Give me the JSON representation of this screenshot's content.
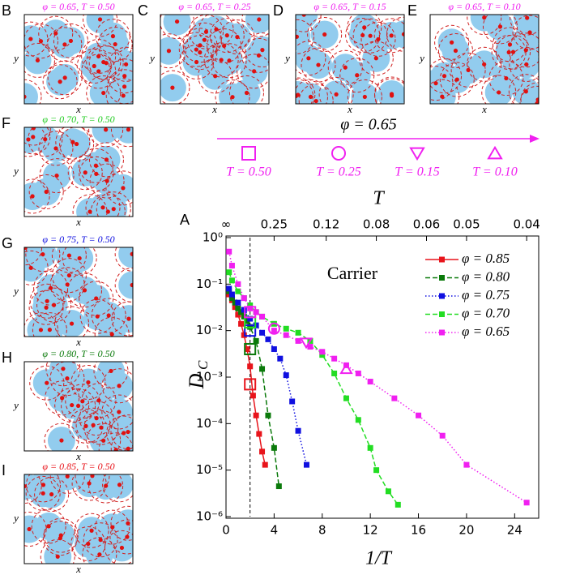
{
  "chart_data": {
    "type": "line",
    "panel_label": "A",
    "xlabel": "1/T",
    "ylabel": "D",
    "ylabel_subscript": "C",
    "top_label": "T",
    "annotation": "Carrier",
    "xlim": [
      0,
      26
    ],
    "xticks": [
      0,
      4,
      8,
      12,
      16,
      20,
      24
    ],
    "ylim": [
      1e-06,
      1
    ],
    "log_y": true,
    "yticks": [
      {
        "value": 1e-06,
        "label": "10⁻⁶"
      },
      {
        "value": 1e-05,
        "label": "10⁻⁵"
      },
      {
        "value": 0.0001,
        "label": "10⁻⁴"
      },
      {
        "value": 0.001,
        "label": "10⁻³"
      },
      {
        "value": 0.01,
        "label": "10⁻²"
      },
      {
        "value": 0.1,
        "label": "10⁻¹"
      },
      {
        "value": 1,
        "label": "10⁰"
      }
    ],
    "xticks_top": [
      {
        "value": 0,
        "label": "∞"
      },
      {
        "value": 4,
        "label": "0.25"
      },
      {
        "value": 8.33,
        "label": "0.12"
      },
      {
        "value": 12.5,
        "label": "0.08"
      },
      {
        "value": 16.67,
        "label": "0.06"
      },
      {
        "value": 20,
        "label": "0.05"
      },
      {
        "value": 25,
        "label": "0.04"
      }
    ],
    "vline": 2,
    "legend": "upper right",
    "series": [
      {
        "name": "φ = 0.85",
        "color": "#e8141b",
        "dash": "solid",
        "x": [
          0.25,
          0.5,
          0.75,
          1,
          1.25,
          1.5,
          1.75,
          2,
          2.25,
          2.5,
          2.75,
          3,
          3.25
        ],
        "values": [
          0.06,
          0.045,
          0.032,
          0.022,
          0.014,
          0.008,
          0.004,
          0.0017,
          0.0004,
          0.00015,
          6e-05,
          2.5e-05,
          1.3e-05
        ]
      },
      {
        "name": "φ = 0.80",
        "color": "#0b7a0b",
        "dash": "dashed",
        "x": [
          0.25,
          0.5,
          0.75,
          1,
          1.25,
          1.5,
          1.75,
          2,
          2.5,
          3,
          3.5,
          4,
          4.4
        ],
        "values": [
          0.07,
          0.05,
          0.04,
          0.03,
          0.025,
          0.02,
          0.016,
          0.012,
          0.006,
          0.0015,
          0.00015,
          3e-05,
          4.5e-06
        ]
      },
      {
        "name": "φ = 0.75",
        "color": "#1010e0",
        "dash": "dotted",
        "x": [
          0.25,
          0.5,
          1,
          1.5,
          2,
          2.5,
          3,
          3.5,
          4,
          4.5,
          5,
          5.5,
          6,
          6.7
        ],
        "values": [
          0.08,
          0.06,
          0.04,
          0.028,
          0.018,
          0.013,
          0.009,
          0.0065,
          0.004,
          0.0025,
          0.0011,
          0.0003,
          7e-05,
          1.3e-05
        ]
      },
      {
        "name": "φ = 0.70",
        "color": "#22dd22",
        "dash": "dashed",
        "x": [
          0.25,
          0.5,
          1,
          1.5,
          2,
          2.5,
          3,
          4,
          5,
          6,
          7,
          8,
          9,
          10,
          11,
          12,
          12.5,
          13.5,
          14.3
        ],
        "values": [
          0.18,
          0.12,
          0.07,
          0.05,
          0.035,
          0.025,
          0.02,
          0.014,
          0.011,
          0.009,
          0.006,
          0.003,
          0.0012,
          0.00035,
          0.00012,
          3e-05,
          1e-05,
          3.5e-06,
          1.8e-06
        ]
      },
      {
        "name": "φ = 0.65",
        "color": "#f020f0",
        "dash": "dotted",
        "x": [
          0.25,
          0.5,
          1,
          1.5,
          2,
          2.5,
          3,
          4,
          5,
          6,
          7,
          8,
          9,
          10,
          11,
          12,
          14,
          16,
          18,
          20,
          25
        ],
        "values": [
          0.5,
          0.25,
          0.1,
          0.05,
          0.03,
          0.025,
          0.02,
          0.01,
          0.008,
          0.006,
          0.0045,
          0.0035,
          0.0025,
          0.0018,
          0.0012,
          0.0008,
          0.00035,
          0.00015,
          5.5e-05,
          1.3e-05,
          2e-06
        ]
      }
    ],
    "highlights": [
      {
        "x": 2,
        "y": 0.0007,
        "marker": "square",
        "color": "#e8141b"
      },
      {
        "x": 2,
        "y": 0.004,
        "marker": "square",
        "color": "#0b7a0b"
      },
      {
        "x": 2,
        "y": 0.01,
        "marker": "square",
        "color": "#1010e0"
      },
      {
        "x": 2,
        "y": 0.015,
        "marker": "square",
        "color": "#22dd22"
      },
      {
        "x": 2,
        "y": 0.025,
        "marker": "square",
        "color": "#f020f0"
      },
      {
        "x": 4,
        "y": 0.011,
        "marker": "circle",
        "color": "#f020f0"
      },
      {
        "x": 6.67,
        "y": 0.0055,
        "marker": "triangle-down",
        "color": "#f020f0"
      },
      {
        "x": 10,
        "y": 0.0015,
        "marker": "triangle-up",
        "color": "#f020f0"
      }
    ]
  },
  "arrow_legend": {
    "label": "φ = 0.65",
    "color": "#f020f0",
    "items": [
      {
        "marker": "square",
        "label": "T = 0.50"
      },
      {
        "marker": "circle",
        "label": "T = 0.25"
      },
      {
        "marker": "triangle-down",
        "label": "T = 0.15"
      },
      {
        "marker": "triangle-up",
        "label": "T = 0.10"
      }
    ]
  },
  "panels": [
    {
      "letter": "B",
      "title": "φ = 0.65, T = 0.50",
      "color": "#f020f0",
      "xlabel": "x",
      "ylabel": "y"
    },
    {
      "letter": "C",
      "title": "φ = 0.65, T = 0.25",
      "color": "#f020f0",
      "xlabel": "x",
      "ylabel": "y"
    },
    {
      "letter": "D",
      "title": "φ = 0.65, T = 0.15",
      "color": "#f020f0",
      "xlabel": "x",
      "ylabel": "y"
    },
    {
      "letter": "E",
      "title": "φ = 0.65, T = 0.10",
      "color": "#f020f0",
      "xlabel": "x",
      "ylabel": "y"
    },
    {
      "letter": "F",
      "title": "φ = 0.70, T = 0.50",
      "color": "#22cc22",
      "xlabel": "x",
      "ylabel": "y"
    },
    {
      "letter": "G",
      "title": "φ = 0.75, T = 0.50",
      "color": "#1010e0",
      "xlabel": "x",
      "ylabel": "y"
    },
    {
      "letter": "H",
      "title": "φ = 0.80, T = 0.50",
      "color": "#0b7a0b",
      "xlabel": "x",
      "ylabel": "y"
    },
    {
      "letter": "I",
      "title": "φ = 0.85, T = 0.50",
      "color": "#e8141b",
      "xlabel": "x",
      "ylabel": "y"
    }
  ]
}
